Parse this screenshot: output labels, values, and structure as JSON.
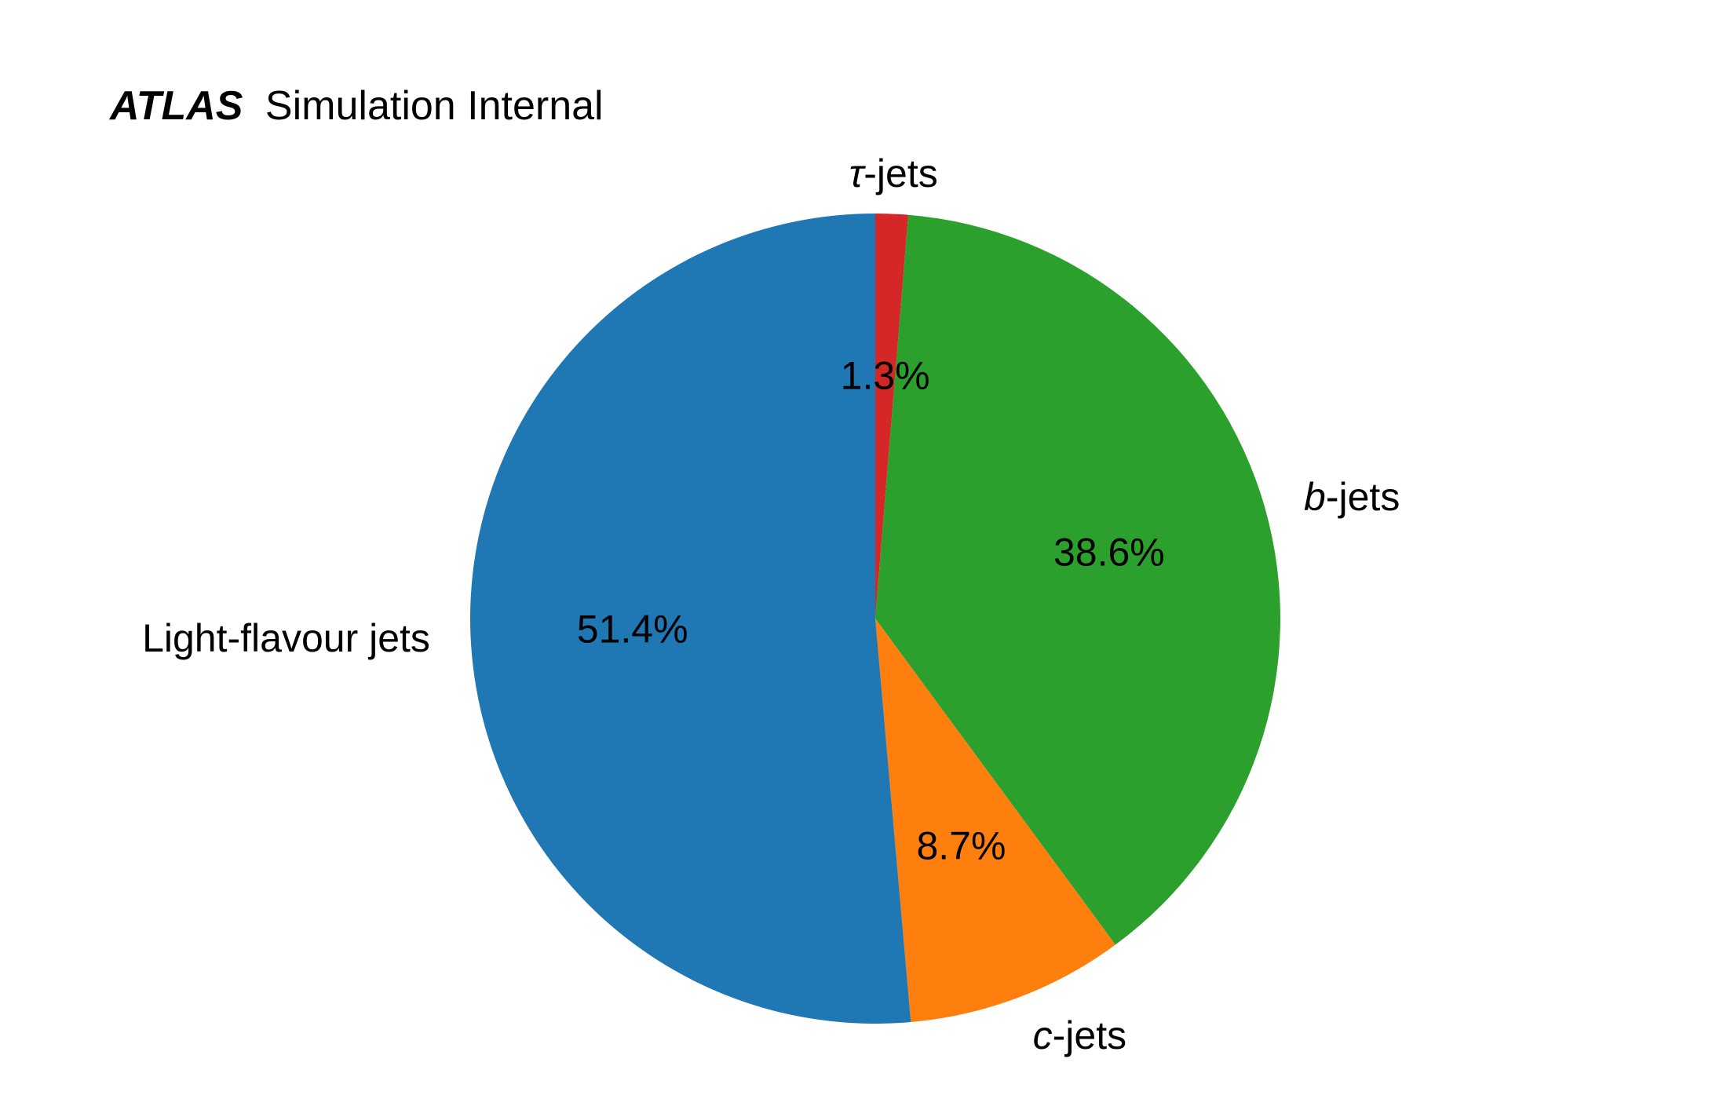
{
  "badge": {
    "experiment": "ATLAS",
    "status": "Simulation Internal"
  },
  "chart_data": {
    "type": "pie",
    "title": "",
    "start_angle_deg": 90,
    "direction": "clockwise",
    "slices": [
      {
        "label_italic": "τ",
        "label_rest": "-jets",
        "percent": 1.3,
        "percent_label": "1.3%",
        "color": "#d62728"
      },
      {
        "label_italic": "b",
        "label_rest": "-jets",
        "percent": 38.6,
        "percent_label": "38.6%",
        "color": "#2ca02c"
      },
      {
        "label_italic": "c",
        "label_rest": "-jets",
        "percent": 8.7,
        "percent_label": "8.7%",
        "color": "#ff7f0e"
      },
      {
        "label_italic": "",
        "label_rest": "Light-flavour jets",
        "percent": 51.4,
        "percent_label": "51.4%",
        "color": "#1f77b4"
      }
    ]
  }
}
